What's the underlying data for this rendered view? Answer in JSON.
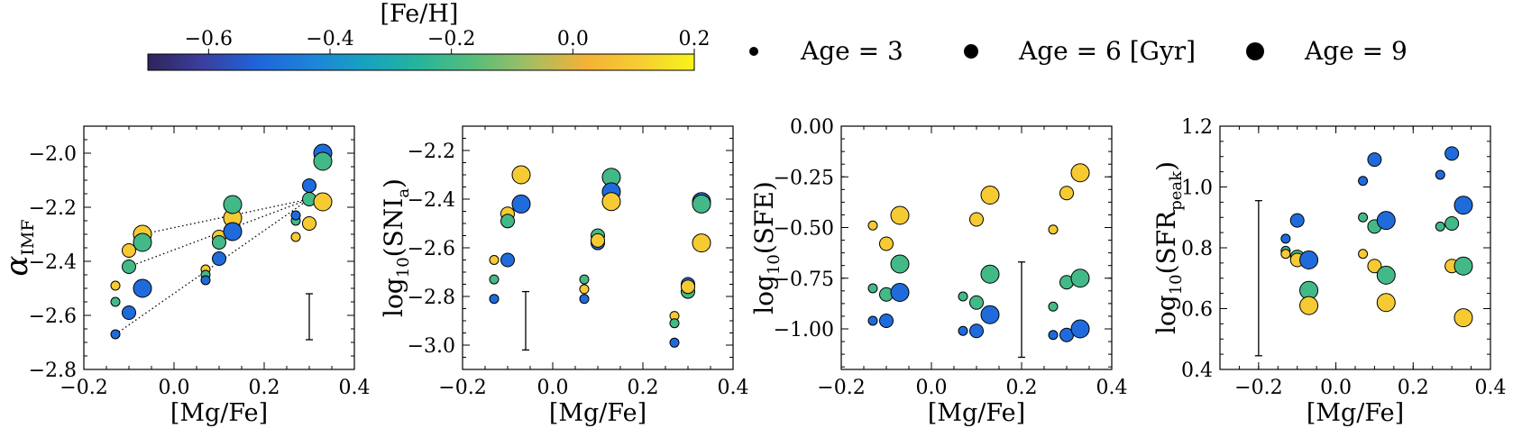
{
  "colorbar": {
    "label": "[Fe/H]",
    "min": -0.7,
    "max": 0.2,
    "ticks": [
      "−0.6",
      "−0.4",
      "−0.2",
      "0.0",
      "0.2"
    ],
    "tick_values": [
      -0.6,
      -0.4,
      -0.2,
      0.0,
      0.2
    ],
    "colormap": [
      "#30235a",
      "#3a3f9e",
      "#1f64dc",
      "#1e84d8",
      "#17a2c0",
      "#27b59a",
      "#59bd7a",
      "#a4be62",
      "#f4b136",
      "#f6cd33",
      "#f7f41a"
    ]
  },
  "size_legend": [
    {
      "label": "Age = 3",
      "age": 3
    },
    {
      "label": "Age = 6 [Gyr]",
      "age": 6
    },
    {
      "label": "Age = 9",
      "age": 9
    }
  ],
  "colors": {
    "feh_low": "#1a6fe0",
    "feh_mid": "#30b495",
    "feh_high": "#f9b43b"
  },
  "chart_data": [
    {
      "type": "scatter",
      "xlabel": "[Mg/Fe]",
      "ylabel": "α",
      "ylabel_sub": "IMF",
      "xlim": [
        -0.2,
        0.4
      ],
      "ylim": [
        -2.8,
        -1.9
      ],
      "xticks": [
        -0.2,
        0.0,
        0.2,
        0.4
      ],
      "xtick_labels": [
        "−0.2",
        "0.0",
        "0.2",
        "0.4"
      ],
      "yticks": [
        -2.0,
        -2.2,
        -2.4,
        -2.6,
        -2.8
      ],
      "ytick_labels": [
        "−2.0",
        "−2.2",
        "−2.4",
        "−2.6",
        "−2.8"
      ],
      "errorbar": {
        "x": 0.3,
        "y_low": -2.69,
        "y_high": -2.52
      },
      "dotted_lines": [
        {
          "x": [
            -0.13,
            0.3
          ],
          "y": [
            -2.67,
            -2.17
          ]
        },
        {
          "x": [
            -0.1,
            0.3
          ],
          "y": [
            -2.42,
            -2.17
          ]
        },
        {
          "x": [
            -0.07,
            0.3
          ],
          "y": [
            -2.3,
            -2.17
          ]
        }
      ],
      "points": [
        {
          "x": -0.13,
          "y": -2.49,
          "feh": 0.1,
          "age": 3
        },
        {
          "x": -0.13,
          "y": -2.55,
          "feh": -0.2,
          "age": 3
        },
        {
          "x": -0.13,
          "y": -2.67,
          "feh": -0.5,
          "age": 3
        },
        {
          "x": -0.1,
          "y": -2.36,
          "feh": 0.1,
          "age": 6
        },
        {
          "x": -0.1,
          "y": -2.42,
          "feh": -0.2,
          "age": 6
        },
        {
          "x": -0.1,
          "y": -2.59,
          "feh": -0.5,
          "age": 6
        },
        {
          "x": -0.07,
          "y": -2.3,
          "feh": 0.1,
          "age": 9
        },
        {
          "x": -0.07,
          "y": -2.33,
          "feh": -0.2,
          "age": 9
        },
        {
          "x": -0.07,
          "y": -2.5,
          "feh": -0.5,
          "age": 9
        },
        {
          "x": 0.07,
          "y": -2.43,
          "feh": 0.1,
          "age": 3
        },
        {
          "x": 0.07,
          "y": -2.45,
          "feh": -0.2,
          "age": 3
        },
        {
          "x": 0.07,
          "y": -2.47,
          "feh": -0.5,
          "age": 3
        },
        {
          "x": 0.1,
          "y": -2.31,
          "feh": 0.1,
          "age": 6
        },
        {
          "x": 0.1,
          "y": -2.33,
          "feh": -0.2,
          "age": 6
        },
        {
          "x": 0.1,
          "y": -2.39,
          "feh": -0.5,
          "age": 6
        },
        {
          "x": 0.13,
          "y": -2.24,
          "feh": 0.1,
          "age": 9
        },
        {
          "x": 0.13,
          "y": -2.19,
          "feh": -0.2,
          "age": 9
        },
        {
          "x": 0.13,
          "y": -2.29,
          "feh": -0.5,
          "age": 9
        },
        {
          "x": 0.27,
          "y": -2.31,
          "feh": 0.1,
          "age": 3
        },
        {
          "x": 0.27,
          "y": -2.25,
          "feh": -0.2,
          "age": 3
        },
        {
          "x": 0.27,
          "y": -2.23,
          "feh": -0.5,
          "age": 3
        },
        {
          "x": 0.3,
          "y": -2.26,
          "feh": 0.1,
          "age": 6
        },
        {
          "x": 0.3,
          "y": -2.17,
          "feh": -0.2,
          "age": 6
        },
        {
          "x": 0.3,
          "y": -2.12,
          "feh": -0.5,
          "age": 6
        },
        {
          "x": 0.33,
          "y": -2.18,
          "feh": 0.1,
          "age": 9
        },
        {
          "x": 0.33,
          "y": -2.0,
          "feh": -0.5,
          "age": 9
        },
        {
          "x": 0.33,
          "y": -2.03,
          "feh": -0.2,
          "age": 9
        }
      ]
    },
    {
      "type": "scatter",
      "xlabel": "[Mg/Fe]",
      "ylabel": "log",
      "ylabel_sub": "10",
      "ylabel_rest": "(SNI",
      "ylabel_sub2": "a",
      "ylabel_end": ")",
      "xlim": [
        -0.2,
        0.4
      ],
      "ylim": [
        -3.1,
        -2.1
      ],
      "xticks": [
        -0.2,
        0.0,
        0.2,
        0.4
      ],
      "xtick_labels": [
        "−0.2",
        "0.0",
        "0.2",
        "0.4"
      ],
      "yticks": [
        -2.2,
        -2.4,
        -2.6,
        -2.8,
        -3.0
      ],
      "ytick_labels": [
        "−2.2",
        "−2.4",
        "−2.6",
        "−2.8",
        "−3.0"
      ],
      "errorbar": {
        "x": -0.06,
        "y_low": -3.02,
        "y_high": -2.78
      },
      "points": [
        {
          "x": -0.13,
          "y": -2.65,
          "feh": 0.1,
          "age": 3
        },
        {
          "x": -0.13,
          "y": -2.73,
          "feh": -0.2,
          "age": 3
        },
        {
          "x": -0.13,
          "y": -2.81,
          "feh": -0.5,
          "age": 3
        },
        {
          "x": -0.1,
          "y": -2.46,
          "feh": 0.1,
          "age": 6
        },
        {
          "x": -0.1,
          "y": -2.49,
          "feh": -0.2,
          "age": 6
        },
        {
          "x": -0.1,
          "y": -2.65,
          "feh": -0.5,
          "age": 6
        },
        {
          "x": -0.07,
          "y": -2.3,
          "feh": 0.1,
          "age": 9
        },
        {
          "x": -0.07,
          "y": -2.42,
          "feh": -0.5,
          "age": 9
        },
        {
          "x": 0.07,
          "y": -2.73,
          "feh": -0.2,
          "age": 3
        },
        {
          "x": 0.07,
          "y": -2.77,
          "feh": 0.1,
          "age": 3
        },
        {
          "x": 0.07,
          "y": -2.81,
          "feh": -0.5,
          "age": 3
        },
        {
          "x": 0.1,
          "y": -2.55,
          "feh": -0.2,
          "age": 6
        },
        {
          "x": 0.1,
          "y": -2.58,
          "feh": -0.5,
          "age": 6
        },
        {
          "x": 0.1,
          "y": -2.57,
          "feh": 0.1,
          "age": 6
        },
        {
          "x": 0.13,
          "y": -2.31,
          "feh": -0.2,
          "age": 9
        },
        {
          "x": 0.13,
          "y": -2.37,
          "feh": -0.5,
          "age": 9
        },
        {
          "x": 0.13,
          "y": -2.41,
          "feh": 0.1,
          "age": 9
        },
        {
          "x": 0.27,
          "y": -2.88,
          "feh": 0.1,
          "age": 3
        },
        {
          "x": 0.27,
          "y": -2.91,
          "feh": -0.2,
          "age": 3
        },
        {
          "x": 0.27,
          "y": -2.99,
          "feh": -0.5,
          "age": 3
        },
        {
          "x": 0.3,
          "y": -2.75,
          "feh": -0.5,
          "age": 6
        },
        {
          "x": 0.3,
          "y": -2.78,
          "feh": -0.2,
          "age": 6
        },
        {
          "x": 0.3,
          "y": -2.76,
          "feh": 0.1,
          "age": 6
        },
        {
          "x": 0.33,
          "y": -2.41,
          "feh": -0.5,
          "age": 9
        },
        {
          "x": 0.33,
          "y": -2.42,
          "feh": -0.2,
          "age": 9
        },
        {
          "x": 0.33,
          "y": -2.58,
          "feh": 0.1,
          "age": 9
        }
      ]
    },
    {
      "type": "scatter",
      "xlabel": "[Mg/Fe]",
      "ylabel": "log",
      "ylabel_sub": "10",
      "ylabel_rest": "(SFE)",
      "xlim": [
        -0.2,
        0.4
      ],
      "ylim": [
        -1.2,
        0.0
      ],
      "xticks": [
        -0.2,
        0.0,
        0.2,
        0.4
      ],
      "xtick_labels": [
        "−0.2",
        "0.0",
        "0.2",
        "0.4"
      ],
      "yticks": [
        0.0,
        -0.25,
        -0.5,
        -0.75,
        -1.0
      ],
      "ytick_labels": [
        "0.00",
        "−0.25",
        "−0.50",
        "−0.75",
        "−1.00"
      ],
      "errorbar": {
        "x": 0.2,
        "y_low": -1.14,
        "y_high": -0.67
      },
      "points": [
        {
          "x": -0.13,
          "y": -0.49,
          "feh": 0.1,
          "age": 3
        },
        {
          "x": -0.13,
          "y": -0.8,
          "feh": -0.2,
          "age": 3
        },
        {
          "x": -0.13,
          "y": -0.96,
          "feh": -0.5,
          "age": 3
        },
        {
          "x": -0.1,
          "y": -0.58,
          "feh": 0.1,
          "age": 6
        },
        {
          "x": -0.1,
          "y": -0.83,
          "feh": -0.2,
          "age": 6
        },
        {
          "x": -0.1,
          "y": -0.96,
          "feh": -0.5,
          "age": 6
        },
        {
          "x": -0.07,
          "y": -0.44,
          "feh": 0.1,
          "age": 9
        },
        {
          "x": -0.07,
          "y": -0.68,
          "feh": -0.2,
          "age": 9
        },
        {
          "x": -0.07,
          "y": -0.82,
          "feh": -0.5,
          "age": 9
        },
        {
          "x": 0.07,
          "y": -0.84,
          "feh": -0.2,
          "age": 3
        },
        {
          "x": 0.07,
          "y": -1.01,
          "feh": -0.5,
          "age": 3
        },
        {
          "x": 0.1,
          "y": -0.46,
          "feh": 0.1,
          "age": 6
        },
        {
          "x": 0.1,
          "y": -0.87,
          "feh": -0.2,
          "age": 6
        },
        {
          "x": 0.1,
          "y": -1.01,
          "feh": -0.5,
          "age": 6
        },
        {
          "x": 0.13,
          "y": -0.34,
          "feh": 0.1,
          "age": 9
        },
        {
          "x": 0.13,
          "y": -0.73,
          "feh": -0.2,
          "age": 9
        },
        {
          "x": 0.13,
          "y": -0.93,
          "feh": -0.5,
          "age": 9
        },
        {
          "x": 0.27,
          "y": -0.51,
          "feh": 0.1,
          "age": 3
        },
        {
          "x": 0.27,
          "y": -0.89,
          "feh": -0.2,
          "age": 3
        },
        {
          "x": 0.27,
          "y": -1.03,
          "feh": -0.5,
          "age": 3
        },
        {
          "x": 0.3,
          "y": -0.33,
          "feh": 0.1,
          "age": 6
        },
        {
          "x": 0.3,
          "y": -0.77,
          "feh": -0.2,
          "age": 6
        },
        {
          "x": 0.3,
          "y": -1.03,
          "feh": -0.5,
          "age": 6
        },
        {
          "x": 0.33,
          "y": -0.23,
          "feh": 0.1,
          "age": 9
        },
        {
          "x": 0.33,
          "y": -0.75,
          "feh": -0.2,
          "age": 9
        },
        {
          "x": 0.33,
          "y": -1.0,
          "feh": -0.5,
          "age": 9
        }
      ]
    },
    {
      "type": "scatter",
      "xlabel": "[Mg/Fe]",
      "ylabel": "log",
      "ylabel_sub": "10",
      "ylabel_rest": "(SFR",
      "ylabel_sub2": "peak",
      "ylabel_end": ")",
      "xlim": [
        -0.3,
        0.4
      ],
      "ylim": [
        0.4,
        1.2
      ],
      "xticks": [
        -0.2,
        0.0,
        0.2,
        0.4
      ],
      "xtick_labels": [
        "−0.2",
        "0.0",
        "0.2",
        "0.4"
      ],
      "yticks": [
        0.4,
        0.6,
        0.8,
        1.0,
        1.2
      ],
      "ytick_labels": [
        "0.4",
        "0.6",
        "0.8",
        "1.0",
        "1.2"
      ],
      "errorbar": {
        "x": -0.2,
        "y_low": 0.445,
        "y_high": 0.955
      },
      "points": [
        {
          "x": -0.13,
          "y": 0.83,
          "feh": -0.5,
          "age": 3
        },
        {
          "x": -0.13,
          "y": 0.79,
          "feh": -0.2,
          "age": 3
        },
        {
          "x": -0.13,
          "y": 0.78,
          "feh": 0.1,
          "age": 3
        },
        {
          "x": -0.1,
          "y": 0.89,
          "feh": -0.5,
          "age": 6
        },
        {
          "x": -0.1,
          "y": 0.77,
          "feh": -0.2,
          "age": 6
        },
        {
          "x": -0.1,
          "y": 0.76,
          "feh": 0.1,
          "age": 6
        },
        {
          "x": -0.07,
          "y": 0.76,
          "feh": -0.5,
          "age": 9
        },
        {
          "x": -0.07,
          "y": 0.66,
          "feh": -0.2,
          "age": 9
        },
        {
          "x": -0.07,
          "y": 0.61,
          "feh": 0.1,
          "age": 9
        },
        {
          "x": 0.07,
          "y": 1.02,
          "feh": -0.5,
          "age": 3
        },
        {
          "x": 0.07,
          "y": 0.9,
          "feh": -0.2,
          "age": 3
        },
        {
          "x": 0.07,
          "y": 0.78,
          "feh": 0.1,
          "age": 3
        },
        {
          "x": 0.1,
          "y": 1.09,
          "feh": -0.5,
          "age": 6
        },
        {
          "x": 0.1,
          "y": 0.87,
          "feh": -0.2,
          "age": 6
        },
        {
          "x": 0.1,
          "y": 0.74,
          "feh": 0.1,
          "age": 6
        },
        {
          "x": 0.13,
          "y": 0.89,
          "feh": -0.5,
          "age": 9
        },
        {
          "x": 0.13,
          "y": 0.71,
          "feh": -0.2,
          "age": 9
        },
        {
          "x": 0.13,
          "y": 0.62,
          "feh": 0.1,
          "age": 9
        },
        {
          "x": 0.27,
          "y": 1.04,
          "feh": -0.5,
          "age": 3
        },
        {
          "x": 0.27,
          "y": 0.87,
          "feh": -0.2,
          "age": 3
        },
        {
          "x": 0.3,
          "y": 1.11,
          "feh": -0.5,
          "age": 6
        },
        {
          "x": 0.3,
          "y": 0.88,
          "feh": -0.2,
          "age": 6
        },
        {
          "x": 0.3,
          "y": 0.74,
          "feh": 0.1,
          "age": 6
        },
        {
          "x": 0.33,
          "y": 0.94,
          "feh": -0.5,
          "age": 9
        },
        {
          "x": 0.33,
          "y": 0.74,
          "feh": -0.2,
          "age": 9
        },
        {
          "x": 0.33,
          "y": 0.57,
          "feh": 0.1,
          "age": 9
        }
      ]
    }
  ]
}
